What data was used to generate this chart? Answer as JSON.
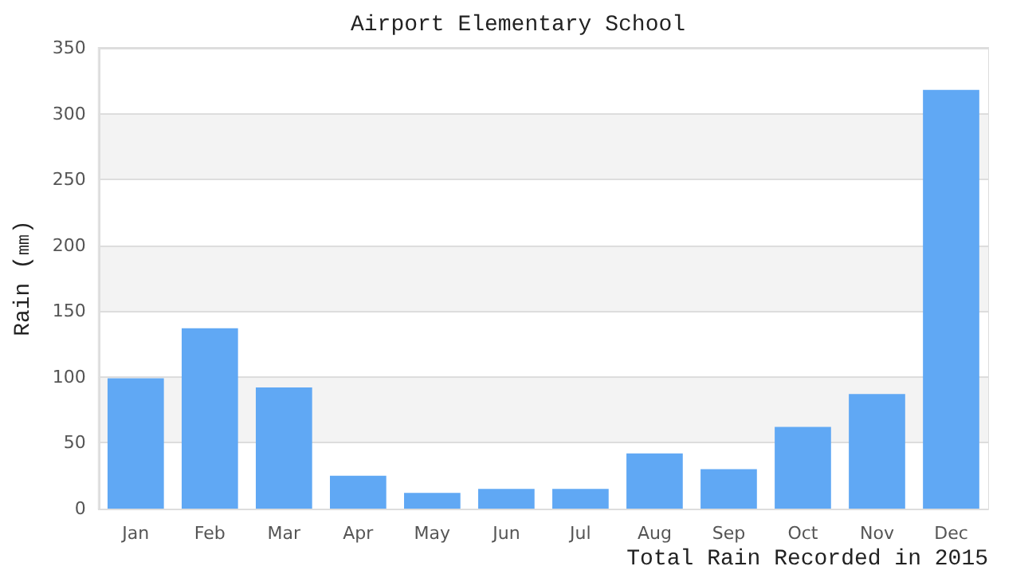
{
  "chart_data": {
    "type": "bar",
    "title": "Airport Elementary School",
    "xlabel": "Total Rain Recorded in 2015",
    "ylabel": "Rain (㎜)",
    "categories": [
      "Jan",
      "Feb",
      "Mar",
      "Apr",
      "May",
      "Jun",
      "Jul",
      "Aug",
      "Sep",
      "Oct",
      "Nov",
      "Dec"
    ],
    "values": [
      99,
      137,
      92,
      25,
      12,
      15,
      15,
      42,
      30,
      62,
      87,
      318
    ],
    "color": "#60a8f4",
    "ylim": [
      0,
      350
    ],
    "yticks": [
      0,
      50,
      100,
      150,
      200,
      250,
      300,
      350
    ],
    "grid": "y"
  }
}
